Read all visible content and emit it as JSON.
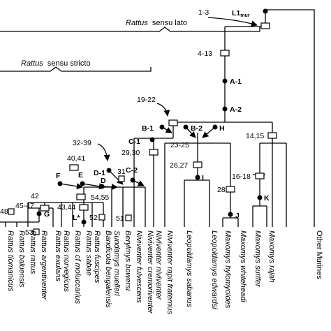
{
  "clades": {
    "lato": {
      "name": "Rattus",
      "suffix": "sensu lato"
    },
    "stricto": {
      "name": "Rattus",
      "suffix": "sensu stricto"
    }
  },
  "node_labels": {
    "n1_3": "1-3",
    "l1mur_main": "L1",
    "l1mur_sub": "mur",
    "n4_13": "4-13",
    "a1": "A-1",
    "a2": "A-2",
    "n19_22": "19-22",
    "b1": "B-1",
    "b2": "B-2",
    "h": "H",
    "n23_25": "23-25",
    "n14_15": "14,15",
    "c1": "C-1",
    "n32_39": "32-39",
    "n29_30": "29,30",
    "n40_41": "40,41",
    "d1": "D-1",
    "n31": "31",
    "c2": "C-2",
    "f": "F",
    "e": "E",
    "d": "D",
    "n26_27": "26,27",
    "i": "I",
    "n16_18": "16-18",
    "k": "K",
    "n28": "28",
    "j": "J",
    "n54_55": "54,55",
    "n42": "42",
    "n45_47": "45-47",
    "n48": "48",
    "g": "G",
    "n43_44": "43,44",
    "lstar": "L*",
    "n52": "52",
    "n53": "53",
    "n51": "51"
  },
  "taxa": [
    {
      "genus": "Rattus",
      "species": "tiomanicus"
    },
    {
      "genus": "Rattus",
      "species": "baluensis"
    },
    {
      "genus": "Rattus",
      "species": "rattus"
    },
    {
      "genus": "Rattus",
      "species": "argentiventer"
    },
    {
      "genus": "Rattus",
      "species": "exulans"
    },
    {
      "genus": "Rattus",
      "species": "norvegicus"
    },
    {
      "genus": "Rattus",
      "species": "cf moluccarius"
    },
    {
      "genus": "Rattus",
      "species": "sabae"
    },
    {
      "genus": "Rattus",
      "species": "fuscipes"
    },
    {
      "genus": "Bandicota",
      "species": "bengalensis"
    },
    {
      "genus": "Sundamys",
      "species": "muelleri"
    },
    {
      "genus": "Berylmys",
      "species": "bowersi"
    },
    {
      "genus": "Niviventer",
      "species": "fulvescens"
    },
    {
      "genus": "Niviventer",
      "species": "cremoriventer"
    },
    {
      "genus": "Niviventer",
      "species": "niviventer"
    },
    {
      "genus": "Niviventer",
      "species": "rapit fraternus"
    },
    {
      "genus": "Leopoldamys",
      "species": "sabanus"
    },
    {
      "genus": "Leopoldamys",
      "species": "edwardsi"
    },
    {
      "genus": "Maxomys",
      "species": "hylomyoides"
    },
    {
      "genus": "Maxomys",
      "species": "whiteheadi"
    },
    {
      "genus": "Maxomys",
      "species": "surifer"
    },
    {
      "genus": "Maxomys",
      "species": "rajah"
    },
    {
      "genus": "Other",
      "species": "Murines",
      "plain": true
    }
  ]
}
